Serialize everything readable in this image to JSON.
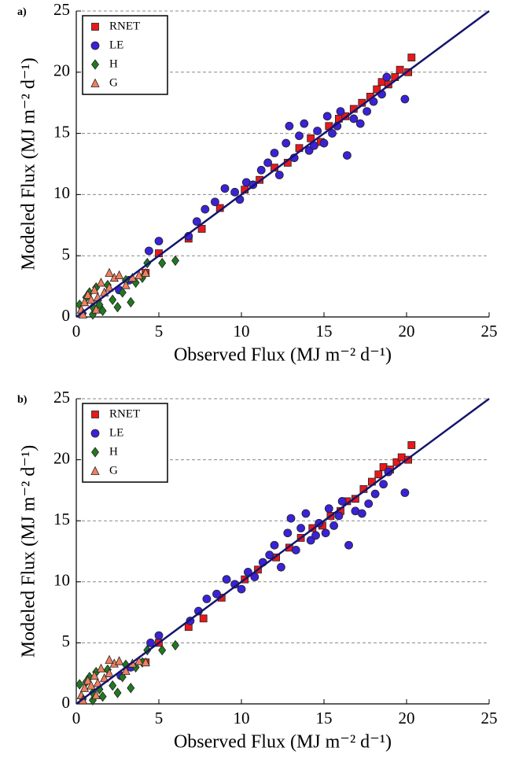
{
  "chart_data": [
    {
      "type": "scatter",
      "panel_label": "a)",
      "xlabel": "Observed Flux (MJ m⁻² d⁻¹)",
      "ylabel": "Modeled Flux (MJ m⁻² d⁻¹)",
      "xlim": [
        0,
        25
      ],
      "ylim": [
        0,
        25
      ],
      "xticks": [
        0,
        5,
        10,
        15,
        20,
        25
      ],
      "yticks": [
        0,
        5,
        10,
        15,
        20,
        25
      ],
      "grid": true,
      "legend": "upper left",
      "series": [
        {
          "name": "RNET",
          "color": "#e8191b",
          "marker": "square",
          "x": [
            6.8,
            7.6,
            8.7,
            10.2,
            11.1,
            12.0,
            12.8,
            13.5,
            14.2,
            14.8,
            15.3,
            15.9,
            16.3,
            16.8,
            17.3,
            17.8,
            18.2,
            18.5,
            18.9,
            19.3,
            19.6,
            20.1,
            20.3,
            5.0,
            4.2
          ],
          "y": [
            6.4,
            7.2,
            8.9,
            10.4,
            11.2,
            12.2,
            12.6,
            13.8,
            14.6,
            14.3,
            15.6,
            16.2,
            16.4,
            17.0,
            17.5,
            18.0,
            18.6,
            19.2,
            19.0,
            19.6,
            20.2,
            20.0,
            21.2,
            5.2,
            3.6
          ]
        },
        {
          "name": "LE",
          "color": "#3a22d6",
          "marker": "circle",
          "x": [
            4.4,
            5.0,
            6.8,
            7.3,
            7.8,
            8.4,
            9.0,
            9.6,
            9.9,
            10.3,
            10.7,
            11.2,
            11.6,
            12.0,
            12.3,
            12.7,
            12.9,
            13.2,
            13.5,
            13.8,
            14.1,
            14.4,
            14.6,
            15.0,
            15.2,
            15.5,
            15.8,
            16.0,
            16.4,
            16.8,
            17.2,
            17.6,
            18.0,
            18.5,
            18.8,
            19.9,
            3.2,
            2.6
          ],
          "y": [
            5.4,
            6.2,
            6.6,
            7.8,
            8.8,
            9.4,
            10.5,
            10.2,
            9.6,
            11.0,
            10.8,
            12.0,
            12.6,
            13.4,
            11.6,
            14.2,
            15.6,
            13.0,
            14.8,
            15.8,
            13.6,
            14.0,
            15.2,
            14.2,
            16.4,
            15.0,
            15.6,
            16.8,
            13.2,
            16.2,
            15.8,
            16.8,
            17.6,
            18.2,
            19.6,
            17.8,
            3.0,
            2.2
          ]
        },
        {
          "name": "H",
          "color": "#1f7a1f",
          "marker": "diamond",
          "x": [
            0.2,
            0.4,
            0.6,
            0.8,
            1.0,
            1.2,
            1.4,
            1.6,
            1.9,
            2.2,
            2.5,
            2.8,
            3.0,
            3.3,
            3.6,
            4.0,
            4.3,
            5.2,
            6.0,
            1.0
          ],
          "y": [
            1.0,
            0.3,
            1.6,
            2.0,
            0.2,
            2.4,
            1.0,
            0.5,
            2.6,
            1.4,
            0.8,
            2.0,
            3.0,
            1.2,
            2.8,
            3.2,
            4.4,
            4.4,
            4.6,
            0.8
          ]
        },
        {
          "name": "G",
          "color": "#f08060",
          "marker": "triangle",
          "x": [
            0.3,
            0.5,
            0.7,
            0.9,
            1.1,
            1.3,
            1.5,
            1.7,
            2.0,
            2.3,
            2.6,
            2.0,
            3.0,
            3.4,
            3.8,
            4.2,
            0.4,
            1.2
          ],
          "y": [
            0.6,
            1.2,
            1.8,
            1.4,
            2.2,
            1.6,
            2.8,
            2.0,
            2.4,
            3.2,
            3.4,
            3.6,
            2.6,
            3.2,
            3.4,
            3.6,
            0.2,
            0.6
          ]
        }
      ]
    },
    {
      "type": "scatter",
      "panel_label": "b)",
      "xlabel": "Observed Flux (MJ m⁻² d⁻¹)",
      "ylabel": "Modeled Flux (MJ m⁻² d⁻¹)",
      "xlim": [
        0,
        25
      ],
      "ylim": [
        0,
        25
      ],
      "xticks": [
        0,
        5,
        10,
        15,
        20,
        25
      ],
      "yticks": [
        0,
        5,
        10,
        15,
        20,
        25
      ],
      "grid": true,
      "legend": "upper left",
      "series": [
        {
          "name": "RNET",
          "color": "#e8191b",
          "marker": "square",
          "x": [
            6.8,
            7.7,
            8.8,
            10.2,
            11.0,
            12.1,
            12.9,
            13.6,
            14.3,
            14.9,
            15.4,
            16.0,
            16.4,
            16.9,
            17.4,
            17.9,
            18.3,
            18.6,
            19.0,
            19.4,
            19.7,
            20.1,
            20.3,
            5.0,
            4.2
          ],
          "y": [
            6.3,
            7.0,
            8.7,
            10.2,
            11.0,
            12.0,
            12.8,
            13.6,
            14.4,
            14.6,
            15.4,
            15.8,
            16.6,
            16.8,
            17.6,
            18.2,
            18.8,
            19.4,
            19.2,
            19.8,
            20.2,
            20.0,
            21.2,
            5.0,
            3.4
          ]
        },
        {
          "name": "LE",
          "color": "#3a22d6",
          "marker": "circle",
          "x": [
            4.5,
            5.0,
            6.9,
            7.4,
            7.9,
            8.5,
            9.1,
            9.6,
            10.0,
            10.4,
            10.8,
            11.3,
            11.7,
            12.0,
            12.4,
            12.8,
            13.0,
            13.3,
            13.6,
            13.9,
            14.2,
            14.5,
            14.7,
            15.1,
            15.3,
            15.6,
            15.9,
            16.1,
            16.5,
            16.9,
            17.3,
            17.7,
            18.1,
            18.6,
            18.9,
            19.9,
            3.3,
            2.7
          ],
          "y": [
            5.0,
            5.6,
            6.8,
            7.6,
            8.6,
            9.0,
            10.2,
            9.8,
            9.4,
            10.8,
            10.4,
            11.6,
            12.2,
            13.0,
            11.2,
            14.0,
            15.2,
            12.6,
            14.4,
            15.6,
            13.4,
            13.8,
            14.8,
            14.0,
            16.0,
            14.6,
            15.4,
            16.6,
            13.0,
            15.8,
            15.6,
            16.4,
            17.2,
            18.0,
            19.0,
            17.3,
            3.0,
            2.3
          ]
        },
        {
          "name": "H",
          "color": "#1f7a1f",
          "marker": "diamond",
          "x": [
            0.2,
            0.4,
            0.6,
            0.8,
            1.0,
            1.2,
            1.4,
            1.6,
            1.9,
            2.2,
            2.5,
            2.8,
            3.0,
            3.3,
            3.6,
            4.0,
            4.3,
            5.2,
            6.0,
            1.0
          ],
          "y": [
            1.6,
            0.4,
            1.8,
            2.2,
            0.3,
            2.6,
            1.2,
            0.6,
            2.8,
            1.5,
            0.9,
            2.2,
            3.2,
            1.3,
            3.0,
            3.4,
            4.4,
            4.4,
            4.8,
            0.9
          ]
        },
        {
          "name": "G",
          "color": "#f08060",
          "marker": "triangle",
          "x": [
            0.3,
            0.5,
            0.7,
            0.9,
            1.1,
            1.3,
            1.5,
            1.7,
            2.0,
            2.3,
            2.6,
            2.0,
            3.0,
            3.4,
            3.8,
            4.2,
            0.4,
            1.2
          ],
          "y": [
            0.7,
            1.3,
            1.9,
            1.5,
            2.3,
            1.7,
            2.9,
            2.1,
            2.5,
            3.3,
            3.5,
            3.6,
            2.7,
            3.3,
            3.5,
            3.4,
            0.3,
            0.7
          ]
        }
      ]
    }
  ]
}
